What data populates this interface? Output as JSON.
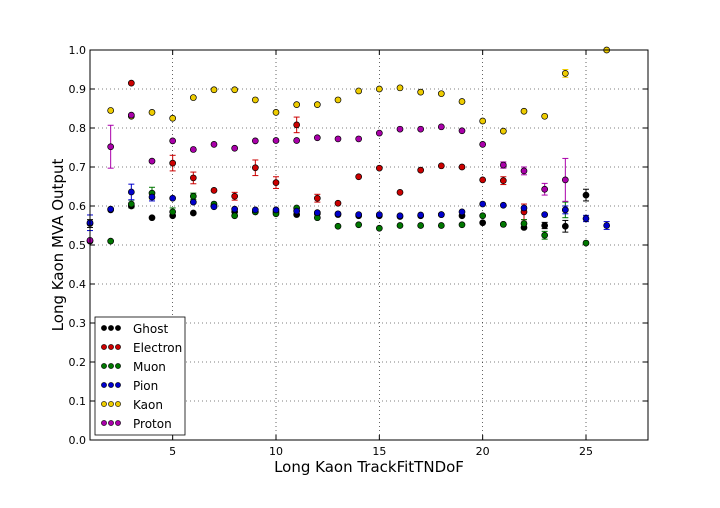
{
  "chart_data": {
    "type": "scatter",
    "xlabel": "Long Kaon TrackFitTNDoF",
    "ylabel": "Long Kaon MVA Output",
    "xlim": [
      1,
      28
    ],
    "ylim": [
      0.0,
      1.0
    ],
    "xticks": [
      5,
      10,
      15,
      20,
      25
    ],
    "yticks": [
      0.0,
      0.1,
      0.2,
      0.3,
      0.4,
      0.5,
      0.6,
      0.7,
      0.8,
      0.9,
      1.0
    ],
    "xtick_labels": [
      "5",
      "10",
      "15",
      "20",
      "25"
    ],
    "ytick_labels": [
      "0.0",
      "0.1",
      "0.2",
      "0.3",
      "0.4",
      "0.5",
      "0.6",
      "0.7",
      "0.8",
      "0.9",
      "1.0"
    ],
    "grid": true,
    "legend_position": "lower-left",
    "series": [
      {
        "name": "Ghost",
        "color": "#000000",
        "x": [
          1,
          2,
          3,
          4,
          5,
          6,
          7,
          8,
          9,
          10,
          11,
          12,
          13,
          14,
          15,
          16,
          17,
          18,
          19,
          20,
          21,
          22,
          23,
          24,
          25
        ],
        "y": [
          0.555,
          0.59,
          0.6,
          0.57,
          0.575,
          0.582,
          0.6,
          0.585,
          0.585,
          0.585,
          0.578,
          0.58,
          0.578,
          0.575,
          0.575,
          0.573,
          0.575,
          0.578,
          0.575,
          0.557,
          0.553,
          0.545,
          0.55,
          0.548,
          0.628
        ],
        "err": [
          0.01,
          0.005,
          0.005,
          0.005,
          0.005,
          0.004,
          0.004,
          0.004,
          0.004,
          0.004,
          0.004,
          0.004,
          0.004,
          0.004,
          0.004,
          0.004,
          0.004,
          0.004,
          0.004,
          0.005,
          0.005,
          0.006,
          0.008,
          0.015,
          0.015
        ]
      },
      {
        "name": "Electron",
        "color": "#cc0000",
        "x": [
          3,
          5,
          6,
          7,
          8,
          9,
          10,
          11,
          12,
          13,
          14,
          15,
          16,
          17,
          18,
          19,
          20,
          21,
          22
        ],
        "y": [
          0.915,
          0.71,
          0.672,
          0.64,
          0.625,
          0.698,
          0.66,
          0.808,
          0.62,
          0.607,
          0.675,
          0.697,
          0.635,
          0.692,
          0.703,
          0.7,
          0.667,
          0.665,
          0.585
        ],
        "err": [
          0.005,
          0.02,
          0.015,
          0.005,
          0.01,
          0.02,
          0.015,
          0.02,
          0.01,
          0.005,
          0.004,
          0.004,
          0.004,
          0.004,
          0.004,
          0.004,
          0.005,
          0.01,
          0.02
        ]
      },
      {
        "name": "Muon",
        "color": "#007700",
        "x": [
          1,
          2,
          3,
          4,
          5,
          6,
          7,
          8,
          9,
          10,
          11,
          12,
          13,
          14,
          15,
          16,
          17,
          18,
          19,
          20,
          21,
          22,
          23,
          24,
          25
        ],
        "y": [
          0.51,
          0.51,
          0.605,
          0.633,
          0.585,
          0.625,
          0.605,
          0.575,
          0.585,
          0.58,
          0.595,
          0.57,
          0.548,
          0.552,
          0.543,
          0.55,
          0.55,
          0.55,
          0.552,
          0.575,
          0.553,
          0.555,
          0.525,
          0.59,
          0.505
        ],
        "err": [
          0.005,
          0.005,
          0.01,
          0.015,
          0.01,
          0.008,
          0.005,
          0.005,
          0.005,
          0.005,
          0.005,
          0.005,
          0.005,
          0.004,
          0.004,
          0.004,
          0.004,
          0.004,
          0.004,
          0.004,
          0.005,
          0.01,
          0.01,
          0.02,
          0.005
        ]
      },
      {
        "name": "Pion",
        "color": "#0000cc",
        "x": [
          1,
          2,
          3,
          4,
          5,
          6,
          7,
          8,
          9,
          10,
          11,
          12,
          13,
          14,
          15,
          16,
          17,
          18,
          19,
          20,
          21,
          22,
          23,
          24,
          25,
          26
        ],
        "y": [
          0.557,
          0.592,
          0.636,
          0.623,
          0.62,
          0.61,
          0.598,
          0.592,
          0.59,
          0.59,
          0.587,
          0.583,
          0.58,
          0.578,
          0.578,
          0.575,
          0.577,
          0.578,
          0.585,
          0.605,
          0.602,
          0.595,
          0.578,
          0.59,
          0.568,
          0.55
        ],
        "err": [
          0.02,
          0.005,
          0.02,
          0.01,
          0.005,
          0.005,
          0.004,
          0.004,
          0.004,
          0.004,
          0.004,
          0.004,
          0.004,
          0.004,
          0.004,
          0.004,
          0.004,
          0.004,
          0.004,
          0.004,
          0.004,
          0.005,
          0.005,
          0.01,
          0.008,
          0.01
        ]
      },
      {
        "name": "Kaon",
        "color": "#eecc00",
        "x": [
          2,
          3,
          4,
          5,
          6,
          7,
          8,
          9,
          10,
          11,
          12,
          13,
          14,
          15,
          16,
          17,
          18,
          19,
          20,
          21,
          22,
          23,
          24,
          26
        ],
        "y": [
          0.845,
          0.83,
          0.84,
          0.825,
          0.878,
          0.898,
          0.898,
          0.872,
          0.84,
          0.86,
          0.86,
          0.872,
          0.895,
          0.9,
          0.903,
          0.892,
          0.888,
          0.868,
          0.818,
          0.792,
          0.843,
          0.83,
          0.94,
          1.0
        ],
        "err": [
          0.005,
          0.005,
          0.004,
          0.004,
          0.004,
          0.004,
          0.003,
          0.003,
          0.003,
          0.003,
          0.003,
          0.003,
          0.003,
          0.003,
          0.003,
          0.003,
          0.003,
          0.003,
          0.004,
          0.005,
          0.005,
          0.006,
          0.01,
          0.001
        ]
      },
      {
        "name": "Proton",
        "color": "#aa00aa",
        "x": [
          1,
          2,
          3,
          4,
          5,
          6,
          7,
          8,
          9,
          10,
          11,
          12,
          13,
          14,
          15,
          16,
          17,
          18,
          19,
          20,
          21,
          22,
          23,
          24
        ],
        "y": [
          0.512,
          0.752,
          0.833,
          0.715,
          0.767,
          0.745,
          0.758,
          0.748,
          0.767,
          0.768,
          0.768,
          0.775,
          0.772,
          0.772,
          0.787,
          0.797,
          0.797,
          0.803,
          0.793,
          0.758,
          0.705,
          0.69,
          0.643,
          0.667
        ],
        "err": [
          0.005,
          0.055,
          0.005,
          0.005,
          0.004,
          0.004,
          0.004,
          0.004,
          0.004,
          0.004,
          0.004,
          0.004,
          0.004,
          0.004,
          0.004,
          0.004,
          0.004,
          0.004,
          0.004,
          0.004,
          0.008,
          0.01,
          0.015,
          0.055
        ]
      }
    ]
  }
}
